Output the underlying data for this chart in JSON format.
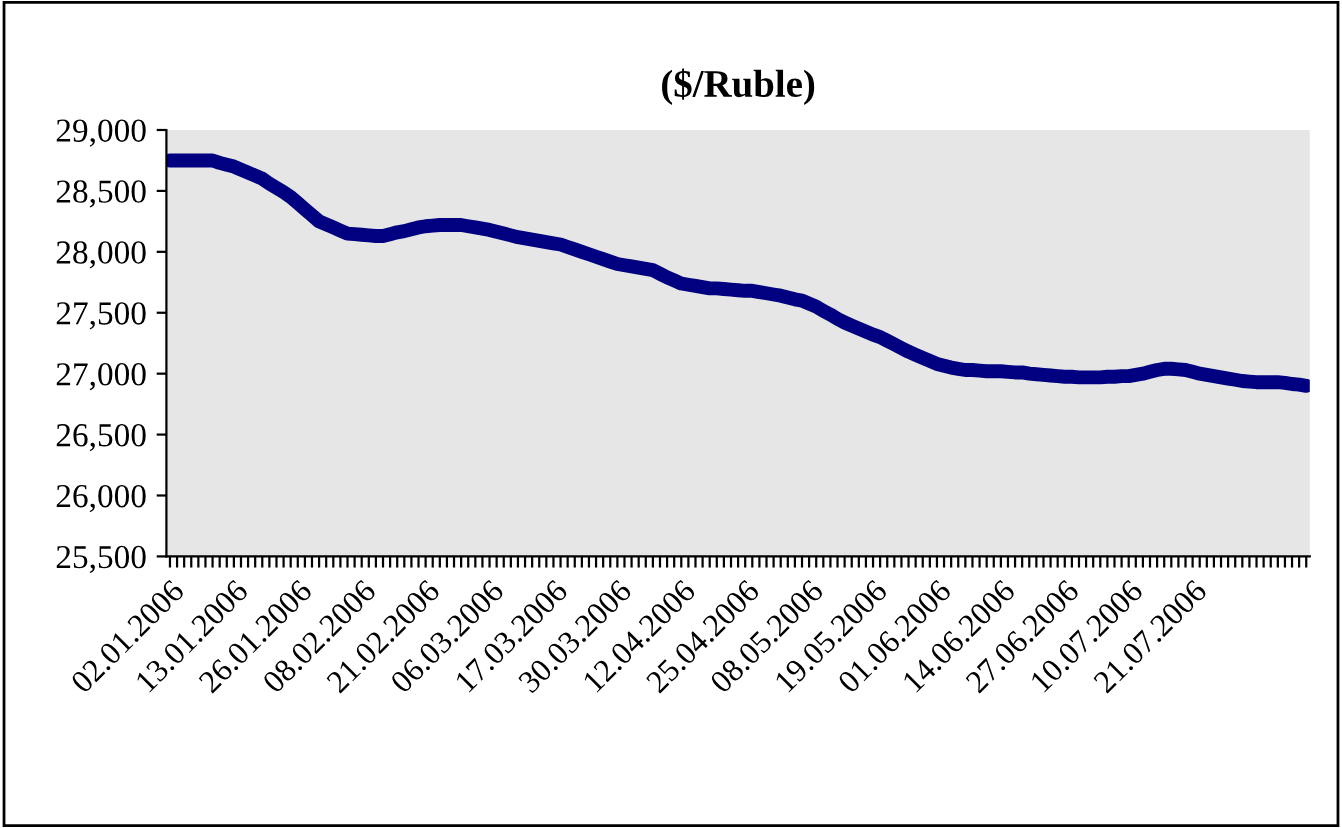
{
  "chart_data": {
    "type": "line",
    "title": "($/Ruble)",
    "categories": [
      "02.01.2006",
      null,
      null,
      null,
      null,
      null,
      null,
      null,
      null,
      "13.01.2006",
      null,
      null,
      null,
      null,
      null,
      null,
      null,
      null,
      "26.01.2006",
      null,
      null,
      null,
      null,
      null,
      null,
      null,
      null,
      "08.02.2006",
      null,
      null,
      null,
      null,
      null,
      null,
      null,
      null,
      "21.02.2006",
      null,
      null,
      null,
      null,
      null,
      null,
      null,
      null,
      "06.03.2006",
      null,
      null,
      null,
      null,
      null,
      null,
      null,
      null,
      "17.03.2006",
      null,
      null,
      null,
      null,
      null,
      null,
      null,
      null,
      "30.03.2006",
      null,
      null,
      null,
      null,
      null,
      null,
      null,
      null,
      "12.04.2006",
      null,
      null,
      null,
      null,
      null,
      null,
      null,
      null,
      "25.04.2006",
      null,
      null,
      null,
      null,
      null,
      null,
      null,
      null,
      "08.05.2006",
      null,
      null,
      null,
      null,
      null,
      null,
      null,
      null,
      "19.05.2006",
      null,
      null,
      null,
      null,
      null,
      null,
      null,
      null,
      "01.06.2006",
      null,
      null,
      null,
      null,
      null,
      null,
      null,
      null,
      "14.06.2006",
      null,
      null,
      null,
      null,
      null,
      null,
      null,
      null,
      "27.06.2006",
      null,
      null,
      null,
      null,
      null,
      null,
      null,
      null,
      "10.07.2006",
      null,
      null,
      null,
      null,
      null,
      null,
      null,
      null,
      "21.07.2006",
      null,
      null,
      null,
      null,
      null,
      null,
      null,
      null,
      null,
      null,
      null,
      null,
      null,
      null,
      null,
      null
    ],
    "series": [
      {
        "color": "#000080",
        "values": [
          28750,
          28750,
          28750,
          28750,
          28750,
          28750,
          28750,
          28730,
          28715,
          28700,
          28675,
          28650,
          28625,
          28600,
          28560,
          28525,
          28490,
          28450,
          28400,
          28350,
          28300,
          28250,
          28225,
          28200,
          28175,
          28150,
          28145,
          28140,
          28135,
          28130,
          28130,
          28145,
          28160,
          28170,
          28185,
          28200,
          28210,
          28215,
          28220,
          28220,
          28220,
          28220,
          28210,
          28200,
          28190,
          28180,
          28165,
          28150,
          28135,
          28120,
          28110,
          28100,
          28090,
          28080,
          28070,
          28060,
          28040,
          28020,
          28000,
          27980,
          27960,
          27940,
          27920,
          27900,
          27890,
          27880,
          27870,
          27860,
          27850,
          27820,
          27790,
          27765,
          27740,
          27730,
          27720,
          27710,
          27700,
          27700,
          27695,
          27690,
          27685,
          27680,
          27680,
          27670,
          27660,
          27650,
          27640,
          27625,
          27610,
          27600,
          27575,
          27550,
          27515,
          27485,
          27450,
          27420,
          27395,
          27370,
          27345,
          27320,
          27300,
          27270,
          27240,
          27210,
          27180,
          27155,
          27130,
          27105,
          27080,
          27065,
          27050,
          27040,
          27030,
          27030,
          27025,
          27020,
          27020,
          27020,
          27015,
          27010,
          27010,
          27000,
          26995,
          26990,
          26985,
          26980,
          26975,
          26975,
          26970,
          26970,
          26970,
          26970,
          26975,
          26975,
          26980,
          26980,
          26990,
          27000,
          27015,
          27030,
          27040,
          27040,
          27035,
          27030,
          27015,
          27000,
          26990,
          26980,
          26970,
          26960,
          26950,
          26940,
          26935,
          26930,
          26930,
          26930,
          26930,
          26925,
          26915,
          26910,
          26900
        ]
      }
    ],
    "ylim": [
      25500,
      29000
    ],
    "yticks": [
      {
        "value": 25500,
        "label": "25,500"
      },
      {
        "value": 26000,
        "label": "26,000"
      },
      {
        "value": 26500,
        "label": "26,500"
      },
      {
        "value": 27000,
        "label": "27,000"
      },
      {
        "value": 27500,
        "label": "27,500"
      },
      {
        "value": 28000,
        "label": "28,000"
      },
      {
        "value": 28500,
        "label": "28,500"
      },
      {
        "value": 29000,
        "label": "29,000"
      }
    ],
    "grid": false,
    "marker": "none",
    "line_style": "solid"
  }
}
